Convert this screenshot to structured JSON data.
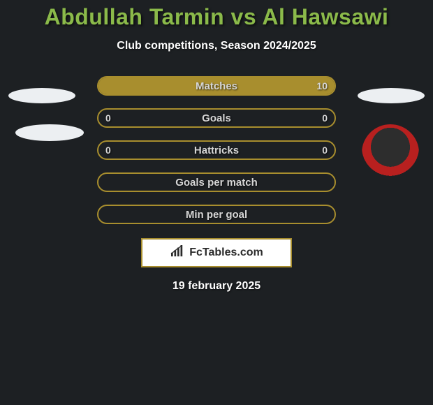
{
  "title": "Abdullah Tarmin vs Al Hawsawi",
  "subtitle": "Club competitions, Season 2024/2025",
  "date": "19 february 2025",
  "branding": {
    "text": "FcTables.com"
  },
  "colors": {
    "background": "#1d2023",
    "accent": "#a88e2e",
    "title": "#8bba4a",
    "text": "#ffffff",
    "rowText": "#d6d6d6",
    "brandBg": "#ffffff",
    "brandText": "#2a2a2a"
  },
  "layout": {
    "rowWidthPx": 342,
    "rowHeightPx": 28,
    "rowGapPx": 18,
    "rowBorderRadiusPx": 14,
    "rowBorderWidthPx": 2,
    "title_fontsize": 32,
    "subtitle_fontsize": 16,
    "rowLabel_fontsize": 15,
    "rowValue_fontsize": 14
  },
  "rows": [
    {
      "label": "Matches",
      "left": "",
      "right": "10",
      "fill": "full",
      "leftPct": 0,
      "rightPct": 100
    },
    {
      "label": "Goals",
      "left": "0",
      "right": "0",
      "fill": "none",
      "leftPct": 0,
      "rightPct": 0
    },
    {
      "label": "Hattricks",
      "left": "0",
      "right": "0",
      "fill": "none",
      "leftPct": 0,
      "rightPct": 0
    },
    {
      "label": "Goals per match",
      "left": "",
      "right": "",
      "fill": "none",
      "leftPct": 0,
      "rightPct": 0
    },
    {
      "label": "Min per goal",
      "left": "",
      "right": "",
      "fill": "none",
      "leftPct": 0,
      "rightPct": 0
    }
  ]
}
